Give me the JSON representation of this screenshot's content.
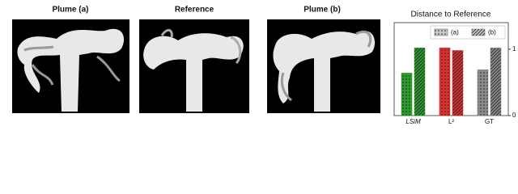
{
  "panels": [
    {
      "title": "Plume (a)"
    },
    {
      "title": "Reference"
    },
    {
      "title": "Plume (b)"
    }
  ],
  "chart_data": {
    "type": "bar",
    "title": "Distance to Reference",
    "categories": [
      "LSiM",
      "L²",
      "GT"
    ],
    "category_colors": [
      "#2e9a2e",
      "#d8322e",
      "#8a8a8a"
    ],
    "series": [
      {
        "name": "(a)",
        "color": "#c8c8c8",
        "pattern": "dots",
        "values": [
          0.64,
          1.02,
          0.69
        ]
      },
      {
        "name": "(b)",
        "color": "#c8c8c8",
        "pattern": "hatch",
        "values": [
          1.02,
          0.98,
          1.02
        ]
      }
    ],
    "ylim": [
      0,
      1.4
    ],
    "yticks": [
      0,
      1
    ],
    "legend": "upper right"
  }
}
